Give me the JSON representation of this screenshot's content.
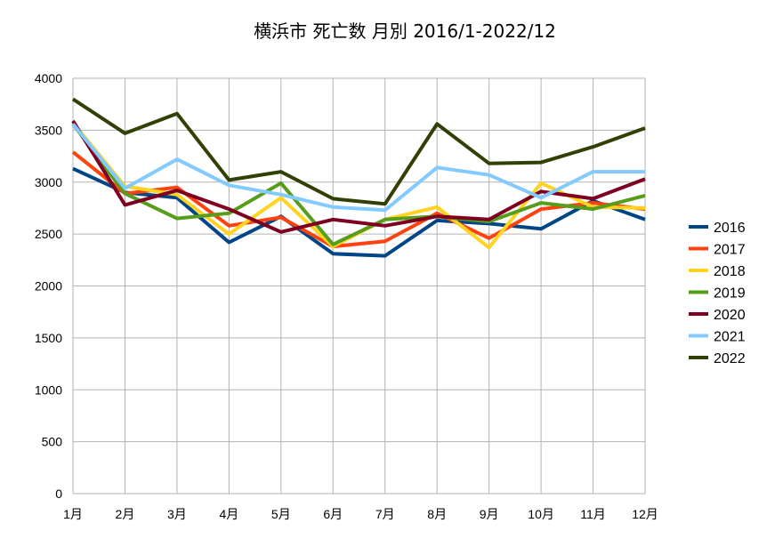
{
  "chart_data": {
    "type": "line",
    "title": "横浜市 死亡数 月別 2016/1-2022/12",
    "xlabel": "",
    "ylabel": "",
    "categories": [
      "1月",
      "2月",
      "3月",
      "4月",
      "5月",
      "6月",
      "7月",
      "8月",
      "9月",
      "10月",
      "11月",
      "12月"
    ],
    "ylim": [
      0,
      4000
    ],
    "yticks": [
      0,
      500,
      1000,
      1500,
      2000,
      2500,
      3000,
      3500,
      4000
    ],
    "grid": true,
    "legend_position": "right",
    "series": [
      {
        "name": "2016",
        "color": "#004586",
        "values": [
          3130,
          2900,
          2850,
          2420,
          2670,
          2310,
          2290,
          2630,
          2600,
          2550,
          2820,
          2640
        ]
      },
      {
        "name": "2017",
        "color": "#ff420e",
        "values": [
          3290,
          2890,
          2950,
          2580,
          2660,
          2380,
          2430,
          2700,
          2460,
          2740,
          2800,
          2740
        ]
      },
      {
        "name": "2018",
        "color": "#ffd320",
        "values": [
          3570,
          2960,
          2880,
          2500,
          2850,
          2380,
          2640,
          2760,
          2370,
          2990,
          2760,
          2750
        ]
      },
      {
        "name": "2019",
        "color": "#579d1c",
        "values": [
          3560,
          2890,
          2650,
          2700,
          2990,
          2400,
          2640,
          2670,
          2620,
          2800,
          2740,
          2870
        ]
      },
      {
        "name": "2020",
        "color": "#7e0021",
        "values": [
          3590,
          2780,
          2920,
          2740,
          2520,
          2640,
          2580,
          2670,
          2640,
          2910,
          2840,
          3030
        ]
      },
      {
        "name": "2021",
        "color": "#83caff",
        "values": [
          3560,
          2940,
          3220,
          2970,
          2880,
          2760,
          2730,
          3140,
          3070,
          2850,
          3100,
          3100
        ]
      },
      {
        "name": "2022",
        "color": "#314004",
        "values": [
          3800,
          3470,
          3660,
          3020,
          3100,
          2840,
          2790,
          3560,
          3180,
          3190,
          3340,
          3520
        ]
      }
    ]
  }
}
